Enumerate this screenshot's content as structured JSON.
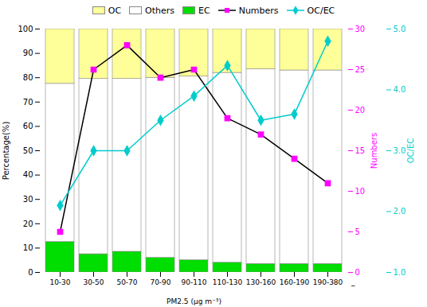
{
  "chart_data": {
    "type": "bar",
    "stacked": true,
    "categories": [
      "10-30",
      "30-50",
      "50-70",
      "70-90",
      "90-110",
      "110-130",
      "130-160",
      "160-190",
      "190-380"
    ],
    "xlabel": "PM2.5 (μg m⁻³)",
    "ylabel": "Percentage(%)",
    "ylim": [
      0,
      100
    ],
    "yticks": [
      0,
      10,
      20,
      30,
      40,
      50,
      60,
      70,
      80,
      90,
      100
    ],
    "y2label": "Numbers",
    "y2lim": [
      0,
      30
    ],
    "y2ticks": [
      0,
      5,
      10,
      15,
      20,
      25,
      30
    ],
    "y3label": "OC/EC",
    "y3lim": [
      1,
      5
    ],
    "y3ticks": [
      1,
      2,
      3,
      4,
      5
    ],
    "legend": "top",
    "annotations": [
      "–"
    ],
    "series": [
      {
        "name": "EC",
        "type": "bar",
        "color": "#00dd00",
        "values": [
          12.5,
          7.5,
          8.5,
          6.0,
          5.0,
          4.0,
          3.5,
          3.5,
          3.5
        ]
      },
      {
        "name": "Others",
        "type": "bar",
        "color": "#ffffff",
        "values": [
          65.0,
          72.0,
          71.0,
          74.0,
          75.5,
          78.0,
          80.0,
          79.5,
          79.5
        ]
      },
      {
        "name": "OC",
        "type": "bar",
        "color": "#ffff99",
        "values": [
          22.5,
          20.5,
          20.5,
          20.0,
          19.5,
          18.0,
          16.5,
          17.0,
          17.0
        ]
      },
      {
        "name": "Numbers",
        "type": "line",
        "axis": "y2",
        "color": "#ff00ff",
        "marker": "square",
        "values": [
          5,
          25,
          28,
          24,
          25,
          19,
          17,
          14,
          11
        ]
      },
      {
        "name": "OC/EC",
        "type": "line",
        "axis": "y3",
        "color": "#00cccc",
        "marker": "diamond",
        "values": [
          2.1,
          3.0,
          3.0,
          3.5,
          3.9,
          4.4,
          3.5,
          3.6,
          4.8
        ]
      }
    ]
  }
}
